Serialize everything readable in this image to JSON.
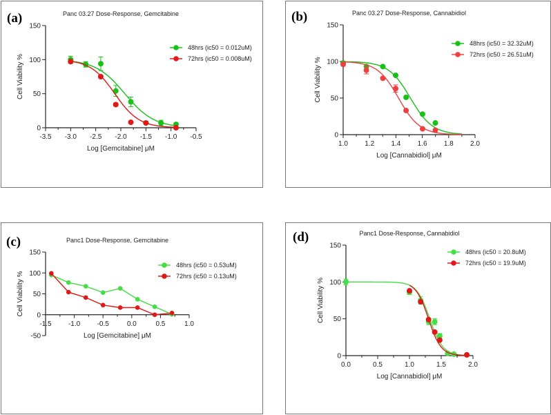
{
  "colors": {
    "green": "#18c018",
    "red": "#e01818",
    "light_green": "#44dd44",
    "light_red": "#ee4040",
    "axis": "#222222"
  },
  "panels": [
    {
      "label": "(a)",
      "chart_data": {
        "type": "scatter",
        "title": "Panc 03.27 Dose-Response, Gemcitabine",
        "xlabel": "Log [Gemcitabine] μM",
        "ylabel": "Cell Viability %",
        "xlim": [
          -3.5,
          -0.5
        ],
        "ylim": [
          0,
          150
        ],
        "xticks": [
          -3.5,
          -3.0,
          -2.5,
          -2.0,
          -1.5,
          -1.0,
          -0.5
        ],
        "xtick_labels": [
          "-3.5",
          "-3.0",
          "-2.5",
          "-2.0",
          "-1.5",
          "-1.0",
          "-0.5"
        ],
        "yticks": [
          0,
          50,
          100,
          150
        ],
        "ytick_labels": [
          "0",
          "50",
          "100",
          "150"
        ],
        "legend_position": "top-right",
        "series": [
          {
            "name": "48hrs (ic50 = 0.012uM)",
            "color": "green",
            "x": [
              -3.0,
              -2.7,
              -2.4,
              -2.1,
              -1.8,
              -1.5,
              -1.2,
              -0.9
            ],
            "y": [
              100,
              93,
              94,
              54,
              38,
              7,
              7,
              5
            ],
            "err": [
              5,
              4,
              10,
              8,
              7,
              2,
              4,
              2
            ],
            "fit": {
              "top": 100,
              "bottom": 0,
              "logic50": -1.92,
              "hill": 1.5
            }
          },
          {
            "name": "72hrs (ic50 = 0.008uM)",
            "color": "red",
            "x": [
              -3.0,
              -2.4,
              -2.1,
              -1.8,
              -1.5,
              -0.9
            ],
            "y": [
              97,
              75,
              34,
              8,
              7,
              0
            ],
            "err": [
              2,
              2,
              2,
              1,
              1,
              1
            ],
            "fit": {
              "top": 100,
              "bottom": 0,
              "logic50": -2.12,
              "hill": 1.8
            }
          }
        ]
      }
    },
    {
      "label": "(b)",
      "chart_data": {
        "type": "scatter",
        "title": "Panc 03.27 Dose-Response, Cannabidiol",
        "xlabel": "Log [Cannabidiol] μM",
        "ylabel": "Cell Viability %",
        "xlim": [
          1.0,
          2.0
        ],
        "ylim": [
          0,
          150
        ],
        "xticks": [
          1.0,
          1.2,
          1.4,
          1.6,
          1.8,
          2.0
        ],
        "xtick_labels": [
          "1.0",
          "1.2",
          "1.4",
          "1.6",
          "1.8",
          "2.0"
        ],
        "yticks": [
          0,
          50,
          100,
          150
        ],
        "ytick_labels": [
          "0",
          "50",
          "100",
          "150"
        ],
        "legend_position": "top-right",
        "series": [
          {
            "name": "48hrs (ic50 = 32.32uM)",
            "color": "green",
            "x": [
              1.0,
              1.176,
              1.301,
              1.398,
              1.477,
              1.602,
              1.699
            ],
            "y": [
              98,
              93,
              93,
              81,
              51,
              28,
              16
            ],
            "err": [
              1,
              1,
              1,
              1,
              1,
              1,
              1
            ],
            "fit": {
              "top": 100,
              "bottom": 0,
              "logic50": 1.51,
              "hill": 5.2,
              "xmax": 1.9
            }
          },
          {
            "name": "72hrs (ic50 = 26.51uM)",
            "color": "light_red",
            "x": [
              1.0,
              1.176,
              1.301,
              1.398,
              1.477,
              1.602,
              1.699
            ],
            "y": [
              96,
              88,
              77,
              63,
              33,
              8,
              6
            ],
            "err": [
              2,
              5,
              1,
              5,
              1,
              1,
              1
            ],
            "fit": {
              "top": 100,
              "bottom": 0,
              "logic50": 1.42,
              "hill": 5.4,
              "xmax": 1.9
            }
          }
        ]
      }
    },
    {
      "label": "(c)",
      "chart_data": {
        "type": "line",
        "title": "Panc1 Dose-Response, Gemcitabine",
        "xlabel": "Log [Gemcitabine] μM",
        "ylabel": "Cell Viability %",
        "xlim": [
          -1.5,
          1.0
        ],
        "ylim": [
          -50,
          150
        ],
        "xticks": [
          -1.5,
          -1.0,
          -0.5,
          0.0,
          0.5,
          1.0
        ],
        "xtick_labels": [
          "-1.5",
          "-1.0",
          "-0.5",
          "0.0",
          "0.5",
          "1.0"
        ],
        "yticks": [
          -50,
          0,
          50,
          100,
          150
        ],
        "ytick_labels": [
          "-50",
          "0",
          "50",
          "100",
          "150"
        ],
        "legend_position": "top-right",
        "series": [
          {
            "name": "48hrs (ic50 = 0.53uM)",
            "color": "light_green",
            "x": [
              -1.4,
              -1.1,
              -0.8,
              -0.5,
              -0.2,
              0.1,
              0.4,
              0.7
            ],
            "y": [
              95,
              77,
              68,
              53,
              63,
              37,
              19,
              1
            ]
          },
          {
            "name": "72hrs (ic50 = 0.13uM)",
            "color": "red",
            "x": [
              -1.4,
              -1.1,
              -0.8,
              -0.5,
              -0.2,
              0.1,
              0.4,
              0.7
            ],
            "y": [
              99,
              54,
              41,
              23,
              17,
              17,
              0,
              4
            ]
          }
        ]
      }
    },
    {
      "label": "(d)",
      "chart_data": {
        "type": "scatter",
        "title": "Panc1 Dose-Response, Cannabidiol",
        "xlabel": "Log [Cannabidiol] μM",
        "ylabel": "Cell Viability %",
        "xlim": [
          0.0,
          2.0
        ],
        "ylim": [
          0,
          150
        ],
        "xticks": [
          0.0,
          0.5,
          1.0,
          1.5,
          2.0
        ],
        "xtick_labels": [
          "0.0",
          "0.5",
          "1.0",
          "1.5",
          "2.0"
        ],
        "yticks": [
          0,
          50,
          100,
          150
        ],
        "ytick_labels": [
          "0",
          "50",
          "100",
          "150"
        ],
        "legend_position": "top-right",
        "series": [
          {
            "name": "48hrs (ic50 = 20.8uM)",
            "color": "light_green",
            "x": [
              0.0,
              1.0,
              1.176,
              1.301,
              1.398,
              1.477,
              1.602,
              1.699,
              1.903
            ],
            "y": [
              100,
              86,
              75,
              46,
              46,
              27,
              3,
              2,
              1
            ],
            "err": [
              4,
              3,
              5,
              4,
              4,
              3,
              1,
              1,
              1
            ],
            "fit": {
              "top": 100,
              "bottom": 0,
              "logic50": 1.32,
              "hill": 4.2
            }
          },
          {
            "name": "72hrs (ic50 = 19.9uM)",
            "color": "red",
            "x": [
              1.0,
              1.176,
              1.301,
              1.398,
              1.477,
              1.903
            ],
            "y": [
              88,
              73,
              49,
              32,
              21,
              1
            ],
            "err": [
              1,
              1,
              1,
              1,
              1,
              1
            ],
            "fit": {
              "top": 100,
              "bottom": 0,
              "logic50": 1.3,
              "hill": 4.4
            }
          }
        ]
      }
    }
  ]
}
